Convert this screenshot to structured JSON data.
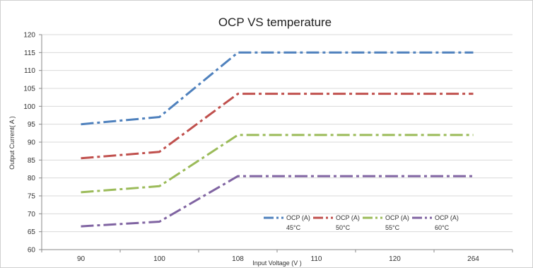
{
  "chart_data": {
    "type": "line",
    "title": "OCP VS temperature",
    "xlabel": "Input Voltage (V )",
    "ylabel": "Output Current( A )",
    "categories": [
      "90",
      "100",
      "108",
      "110",
      "120",
      "264"
    ],
    "ylim": [
      60,
      120
    ],
    "ytick_step": 5,
    "grid": "horizontal",
    "legend_position": "bottom-right-inside",
    "series": [
      {
        "name": "OCP (A)",
        "name_line2": "45°C",
        "color": "#4f81bd",
        "values": [
          95,
          97,
          115,
          115,
          115,
          115
        ]
      },
      {
        "name": "OCP (A)",
        "name_line2": "50°C",
        "color": "#c0504d",
        "values": [
          85.5,
          87.3,
          103.5,
          103.5,
          103.5,
          103.5
        ]
      },
      {
        "name": "OCP (A)",
        "name_line2": "55°C",
        "color": "#9bbb59",
        "values": [
          76,
          77.7,
          92,
          92,
          92,
          92
        ]
      },
      {
        "name": "OCP (A)",
        "name_line2": "60°C",
        "color": "#8064a2",
        "values": [
          66.5,
          67.8,
          80.5,
          80.5,
          80.5,
          80.5
        ]
      }
    ]
  }
}
